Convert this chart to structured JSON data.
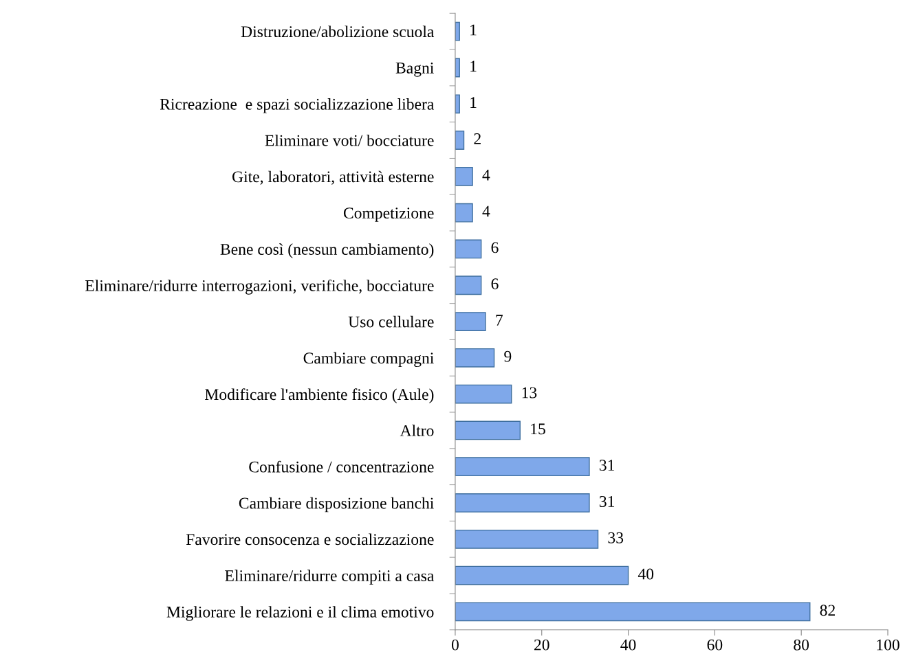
{
  "chart_data": {
    "type": "bar",
    "orientation": "horizontal",
    "categories": [
      "Distruzione/abolizione scuola",
      "Bagni",
      "Ricreazione  e spazi socializzazione libera",
      "Eliminare voti/ bocciature",
      "Gite, laboratori, attività esterne",
      "Competizione",
      "Bene così (nessun cambiamento)",
      "Eliminare/ridurre interrogazioni, verifiche, bocciature",
      "Uso cellulare",
      "Cambiare compagni",
      "Modificare l'ambiente fisico (Aule)",
      "Altro",
      "Confusione / concentrazione",
      "Cambiare disposizione banchi",
      "Favorire consocenza e socializzazione",
      "Eliminare/ridurre compiti a casa",
      "Migliorare le relazioni e il clima emotivo"
    ],
    "values": [
      1,
      1,
      1,
      2,
      4,
      4,
      6,
      6,
      7,
      9,
      13,
      15,
      31,
      31,
      33,
      40,
      82
    ],
    "color": "#7fa8ea",
    "xlim": [
      0,
      100
    ],
    "xticks": [
      0,
      20,
      40,
      60,
      80,
      100
    ],
    "grid": false,
    "legend": false,
    "data_labels": true
  }
}
